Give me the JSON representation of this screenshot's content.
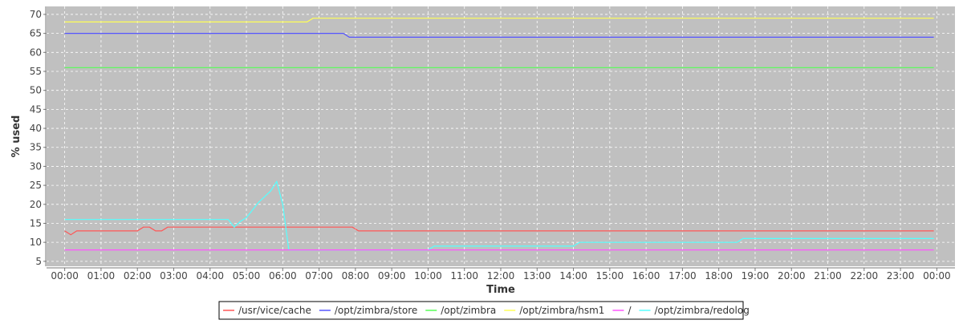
{
  "chart_data": {
    "type": "line",
    "title": "",
    "xlabel": "Time",
    "ylabel": "% used",
    "ylim": [
      3.7,
      72.1
    ],
    "xlim_hours": [
      -0.5,
      24.5
    ],
    "grid": true,
    "legend_placement": "bottom",
    "y_ticks": [
      5,
      10,
      15,
      20,
      25,
      30,
      35,
      40,
      45,
      50,
      55,
      60,
      65,
      70
    ],
    "x_ticks": [
      "00:00",
      "01:00",
      "02:00",
      "03:00",
      "04:00",
      "05:00",
      "06:00",
      "07:00",
      "08:00",
      "09:00",
      "10:00",
      "11:00",
      "12:00",
      "13:00",
      "14:00",
      "15:00",
      "16:00",
      "17:00",
      "18:00",
      "19:00",
      "20:00",
      "21:00",
      "22:00",
      "23:00",
      "00:00"
    ],
    "series": [
      {
        "name": "/usr/vice/cache",
        "color": "#ff5555",
        "points": [
          [
            "00:00",
            13
          ],
          [
            "00:10",
            12
          ],
          [
            "00:20",
            13
          ],
          [
            "02:00",
            13
          ],
          [
            "02:10",
            14
          ],
          [
            "02:20",
            14
          ],
          [
            "02:30",
            13
          ],
          [
            "02:40",
            13
          ],
          [
            "02:50",
            14
          ],
          [
            "07:55",
            14
          ],
          [
            "08:05",
            13
          ],
          [
            "23:55",
            13
          ]
        ]
      },
      {
        "name": "/opt/zimbra/store",
        "color": "#5555ff",
        "points": [
          [
            "00:00",
            65
          ],
          [
            "07:40",
            65
          ],
          [
            "07:50",
            64
          ],
          [
            "23:55",
            64
          ]
        ]
      },
      {
        "name": "/opt/zimbra",
        "color": "#55ff55",
        "points": [
          [
            "00:00",
            56
          ],
          [
            "23:55",
            56
          ]
        ]
      },
      {
        "name": "/opt/zimbra/hsm1",
        "color": "#ffff55",
        "points": [
          [
            "00:00",
            68
          ],
          [
            "06:40",
            68
          ],
          [
            "06:50",
            69
          ],
          [
            "23:55",
            69
          ]
        ]
      },
      {
        "name": "/",
        "color": "#ff55ff",
        "points": [
          [
            "00:00",
            8
          ],
          [
            "23:55",
            8
          ]
        ]
      },
      {
        "name": "/opt/zimbra/redolog",
        "color": "#55ffff",
        "points": [
          [
            "00:00",
            16
          ],
          [
            "04:30",
            16
          ],
          [
            "04:40",
            14
          ],
          [
            "04:50",
            15.5
          ],
          [
            "05:00",
            16.5
          ],
          [
            "05:10",
            18.5
          ],
          [
            "05:20",
            20.5
          ],
          [
            "05:30",
            22
          ],
          [
            "05:40",
            23.5
          ],
          [
            "05:50",
            26
          ],
          [
            "06:00",
            20
          ],
          [
            "06:10",
            8
          ],
          [
            "10:00",
            8
          ],
          [
            "10:10",
            9
          ],
          [
            "14:00",
            9
          ],
          [
            "14:10",
            10
          ],
          [
            "18:30",
            10
          ],
          [
            "18:40",
            11
          ],
          [
            "23:55",
            11
          ]
        ]
      }
    ]
  }
}
